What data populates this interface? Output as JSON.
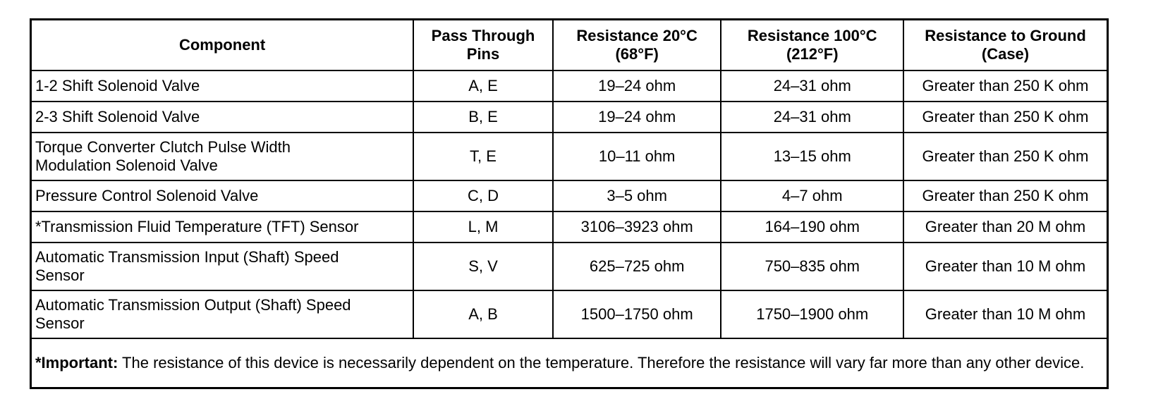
{
  "table": {
    "header": [
      "Component",
      [
        "Pass Through",
        "Pins"
      ],
      [
        "Resistance 20°C",
        "(68°F)"
      ],
      [
        "Resistance 100°C",
        "(212°F)"
      ],
      [
        "Resistance to Ground",
        "(Case)"
      ]
    ],
    "rows": [
      [
        "1-2 Shift Solenoid Valve",
        "A, E",
        "19–24 ohm",
        "24–31 ohm",
        "Greater than 250 K ohm"
      ],
      [
        "2-3 Shift Solenoid Valve",
        "B, E",
        "19–24 ohm",
        "24–31 ohm",
        "Greater than 250 K ohm"
      ],
      [
        [
          "Torque Converter Clutch Pulse Width",
          "Modulation Solenoid Valve"
        ],
        "T, E",
        "10–11 ohm",
        "13–15 ohm",
        "Greater than 250 K ohm"
      ],
      [
        "Pressure Control Solenoid Valve",
        "C, D",
        "3–5 ohm",
        "4–7 ohm",
        "Greater than 250 K ohm"
      ],
      [
        "*Transmission Fluid Temperature (TFT) Sensor",
        "L, M",
        "3106–3923 ohm",
        "164–190 ohm",
        "Greater than 20 M ohm"
      ],
      [
        [
          "Automatic Transmission Input (Shaft) Speed",
          "Sensor"
        ],
        "S, V",
        "625–725 ohm",
        "750–835 ohm",
        "Greater than 10 M ohm"
      ],
      [
        [
          "Automatic Transmission Output (Shaft) Speed",
          "Sensor"
        ],
        "A, B",
        "1500–1750 ohm",
        "1750–1900 ohm",
        "Greater than 10 M ohm"
      ]
    ],
    "note": {
      "label": "*Important:",
      "text": "The resistance of this device is necessarily dependent on the temperature. Therefore the resistance will vary far more than any other device."
    }
  }
}
